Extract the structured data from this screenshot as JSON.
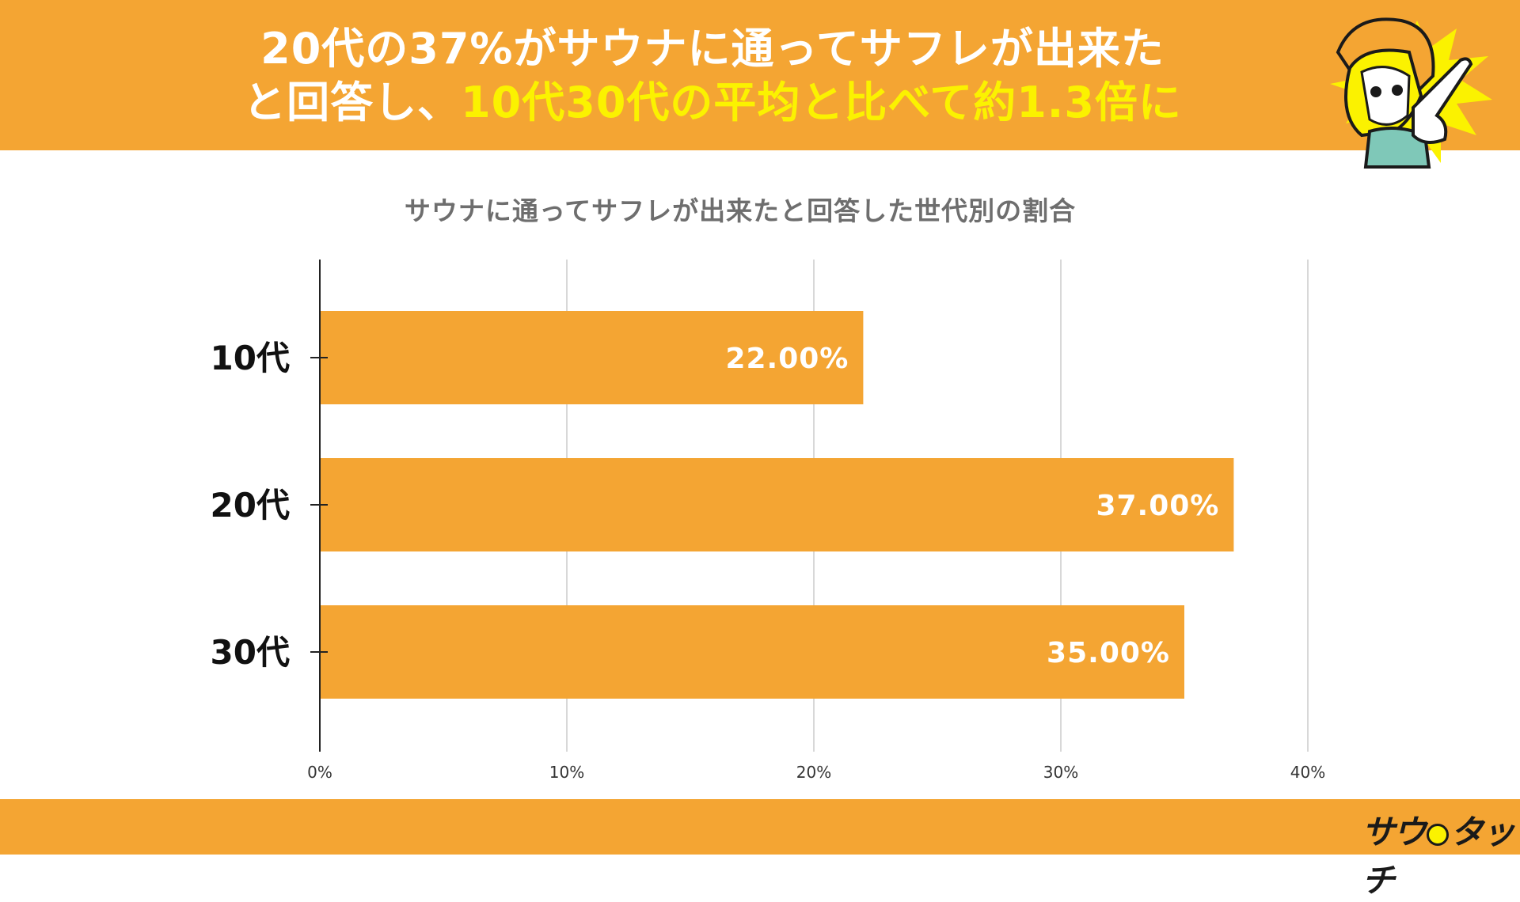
{
  "header": {
    "headline_line1": "20代の37%がサウナに通ってサフレが出来た",
    "headline_line2_a": "と回答し、",
    "headline_line2_b": "10代30代の平均と比べて約1.3倍に"
  },
  "logo": {
    "text_a": "サウ",
    "text_b": "タッチ"
  },
  "colors": {
    "accent": "#f4a533",
    "bar": "#f4a533",
    "headline_highlight": "#fbf200",
    "headline_text": "#ffffff"
  },
  "chart_data": {
    "type": "bar",
    "orientation": "horizontal",
    "title": "サウナに通ってサフレが出来たと回答した世代別の割合",
    "categories": [
      "10代",
      "20代",
      "30代"
    ],
    "values": [
      22,
      37,
      35
    ],
    "data_labels": [
      "22.00%",
      "37.00%",
      "35.00%"
    ],
    "xlim": [
      0,
      40
    ],
    "x_ticks": [
      0,
      10,
      20,
      30,
      40
    ],
    "x_tick_labels": [
      "0%",
      "10%",
      "20%",
      "30%",
      "40%"
    ],
    "grid": true,
    "legend": "none"
  }
}
